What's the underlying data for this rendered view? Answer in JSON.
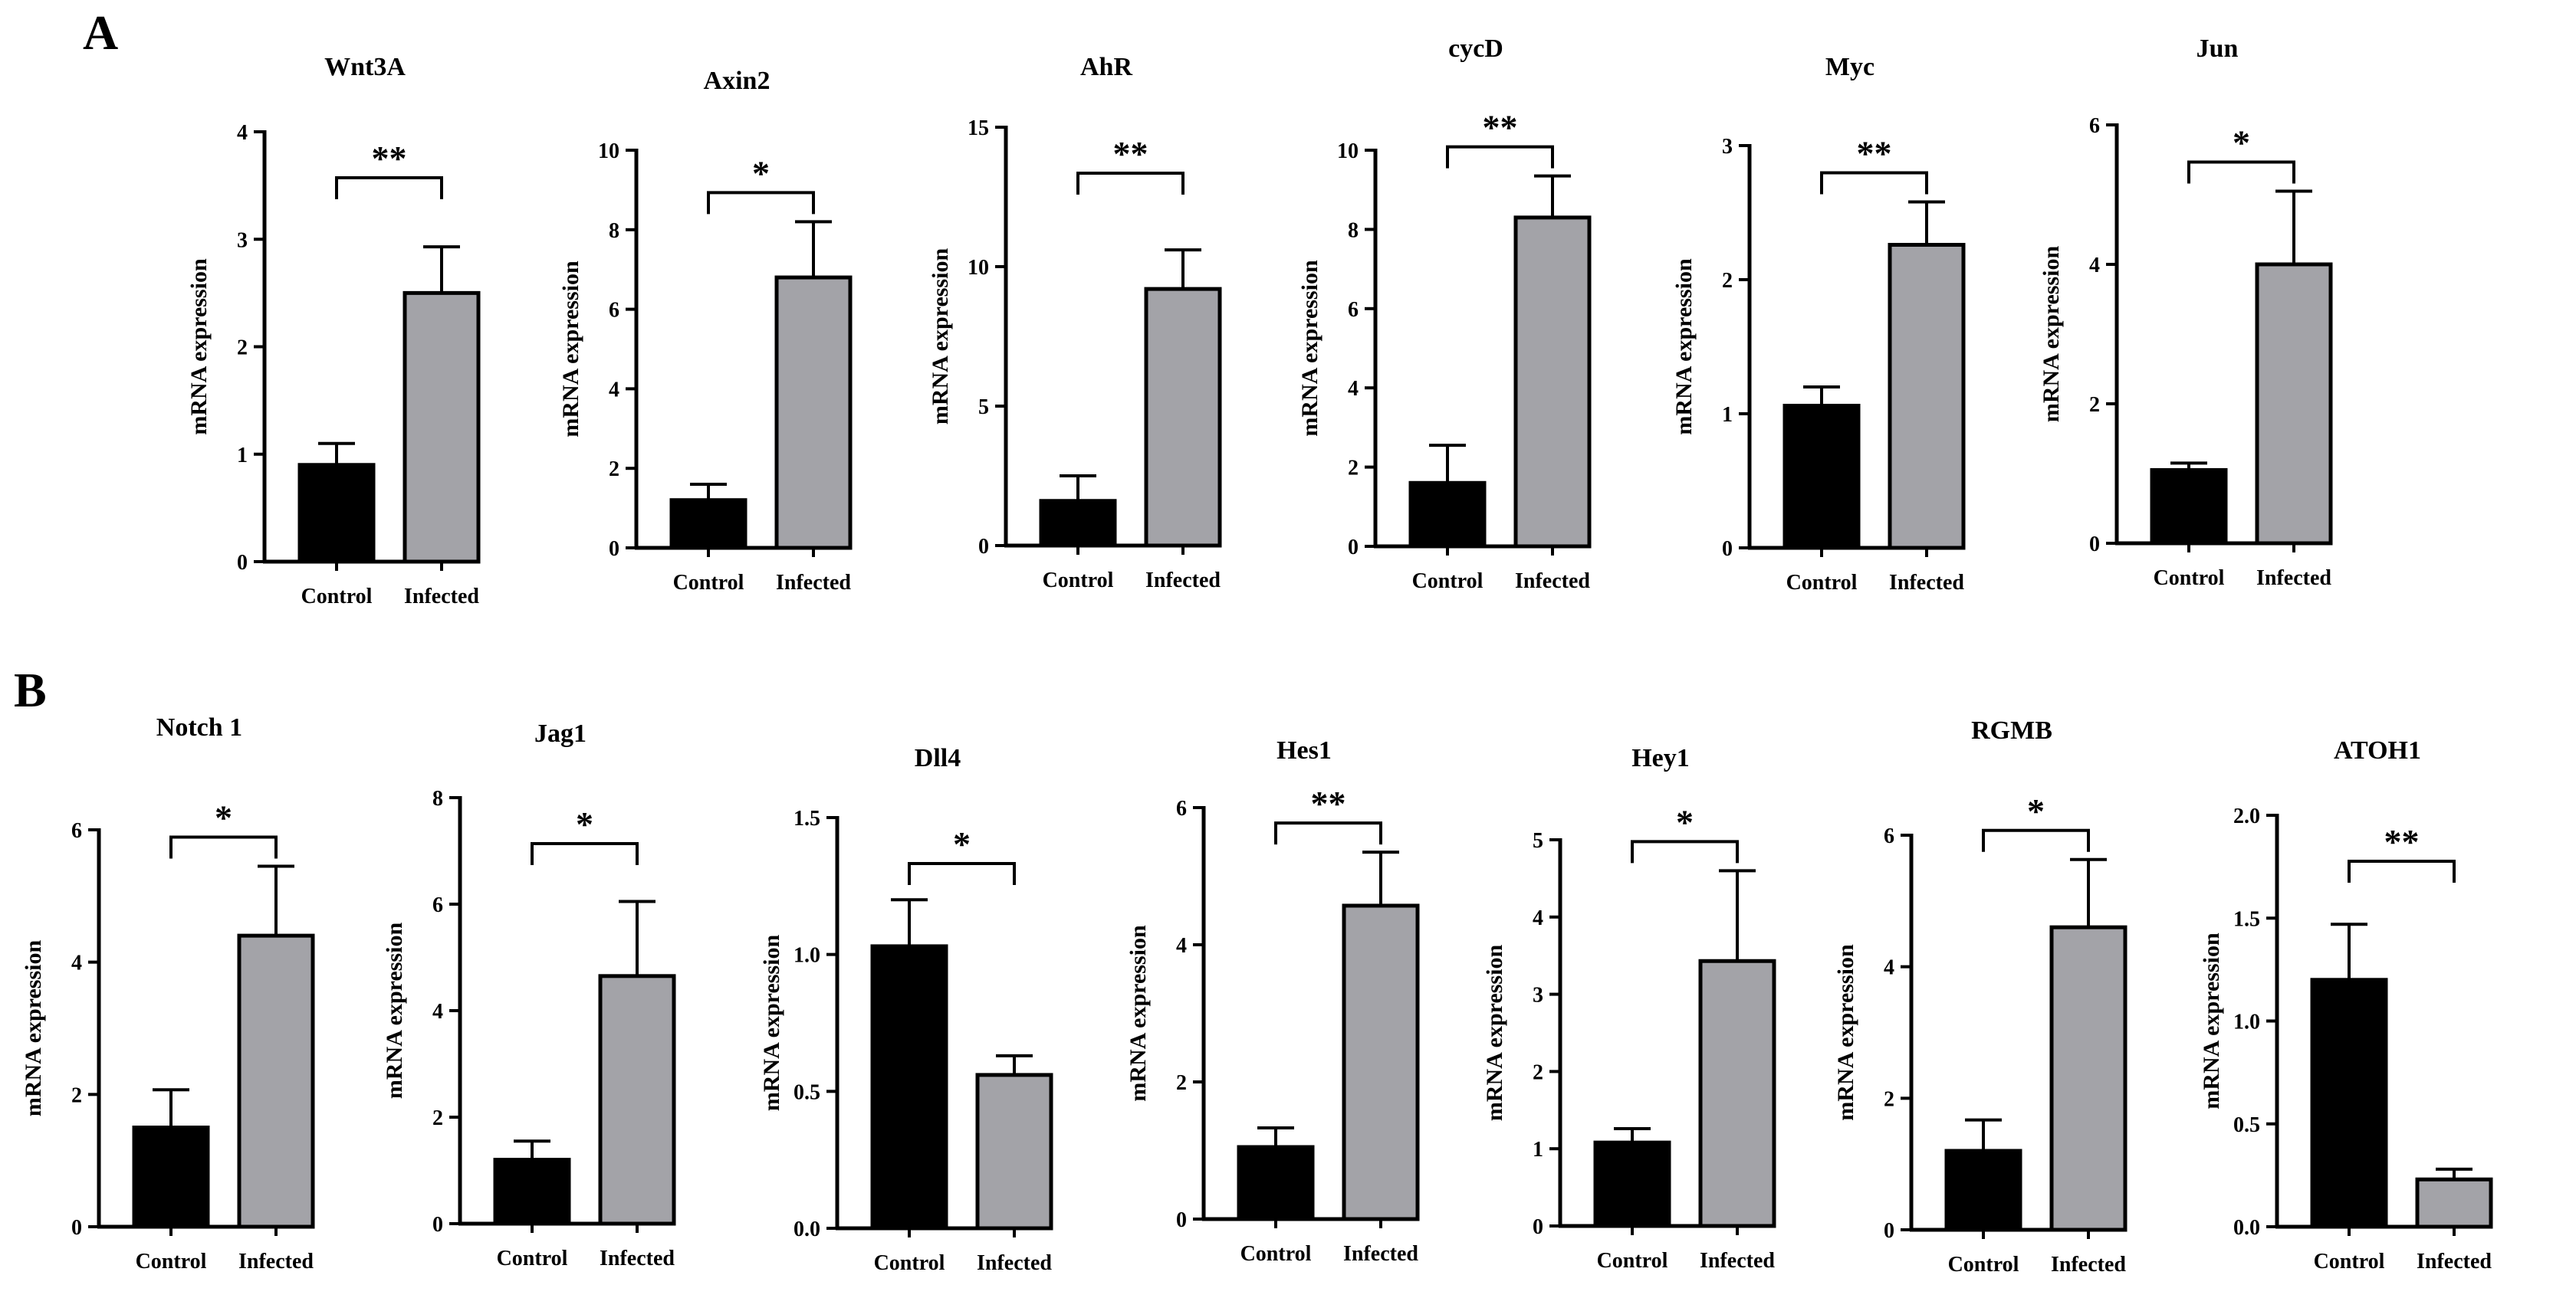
{
  "figure": {
    "panels": [
      "A",
      "B"
    ],
    "colors": {
      "control": "#000000",
      "infected": "#a3a3a8",
      "axis": "#000000"
    }
  },
  "chart_data": [
    {
      "type": "bar",
      "title": "Wnt3A",
      "categories": [
        "Control",
        "Infected"
      ],
      "values": [
        0.9,
        2.5
      ],
      "errors": [
        0.2,
        0.43
      ],
      "ylabel": "mRNA expression",
      "ylim": [
        0,
        4
      ],
      "yticks": [
        "0",
        "1",
        "2",
        "3",
        "4"
      ],
      "significance": "**",
      "panel": "A"
    },
    {
      "type": "bar",
      "title": "Axin2",
      "categories": [
        "Control",
        "Infected"
      ],
      "values": [
        1.2,
        6.8
      ],
      "errors": [
        0.4,
        1.4
      ],
      "ylabel": "mRNA expression",
      "ylim": [
        0,
        10
      ],
      "yticks": [
        "0",
        "2",
        "4",
        "6",
        "8",
        "10"
      ],
      "significance": "*",
      "panel": "A"
    },
    {
      "type": "bar",
      "title": "AhR",
      "categories": [
        "Control",
        "Infected"
      ],
      "values": [
        1.6,
        9.2
      ],
      "errors": [
        0.9,
        1.4
      ],
      "ylabel": "mRNA expression",
      "ylim": [
        0,
        15
      ],
      "yticks": [
        "0",
        "5",
        "10",
        "15"
      ],
      "significance": "**",
      "panel": "A"
    },
    {
      "type": "bar",
      "title": "cycD",
      "categories": [
        "Control",
        "Infected"
      ],
      "values": [
        1.6,
        8.3
      ],
      "errors": [
        0.95,
        1.05
      ],
      "ylabel": "mRNA expression",
      "ylim": [
        0,
        10
      ],
      "yticks": [
        "0",
        "2",
        "4",
        "6",
        "8",
        "10"
      ],
      "significance": "**",
      "panel": "A"
    },
    {
      "type": "bar",
      "title": "Myc",
      "categories": [
        "Control",
        "Infected"
      ],
      "values": [
        1.06,
        2.26
      ],
      "errors": [
        0.14,
        0.32
      ],
      "ylabel": "mRNA expression",
      "ylim": [
        0,
        3
      ],
      "yticks": [
        "0",
        "1",
        "2",
        "3"
      ],
      "significance": "**",
      "panel": "A"
    },
    {
      "type": "bar",
      "title": "Jun",
      "categories": [
        "Control",
        "Infected"
      ],
      "values": [
        1.05,
        4.0
      ],
      "errors": [
        0.1,
        1.05
      ],
      "ylabel": "mRNA expression",
      "ylim": [
        0,
        6
      ],
      "yticks": [
        "0",
        "2",
        "4",
        "6"
      ],
      "significance": "*",
      "panel": "A"
    },
    {
      "type": "bar",
      "title": "Notch 1",
      "categories": [
        "Control",
        "Infected"
      ],
      "values": [
        1.5,
        4.4
      ],
      "errors": [
        0.57,
        1.05
      ],
      "ylabel": "mRNA expression",
      "ylim": [
        0,
        6
      ],
      "yticks": [
        "0",
        "2",
        "4",
        "6"
      ],
      "significance": "*",
      "panel": "B"
    },
    {
      "type": "bar",
      "title": "Jag1",
      "categories": [
        "Control",
        "Infected"
      ],
      "values": [
        1.2,
        4.65
      ],
      "errors": [
        0.35,
        1.4
      ],
      "ylabel": "mRNA expression",
      "ylim": [
        0,
        8
      ],
      "yticks": [
        "0",
        "2",
        "4",
        "6",
        "8"
      ],
      "significance": "*",
      "panel": "B"
    },
    {
      "type": "bar",
      "title": "Dll4",
      "categories": [
        "Control",
        "Infected"
      ],
      "values": [
        1.03,
        0.56
      ],
      "errors": [
        0.17,
        0.07
      ],
      "ylabel": "mRNA expression",
      "ylim": [
        0,
        1.5
      ],
      "yticks": [
        "0.0",
        "0.5",
        "1.0",
        "1.5"
      ],
      "significance": "*",
      "panel": "B"
    },
    {
      "type": "bar",
      "title": "Hes1",
      "categories": [
        "Control",
        "Infected"
      ],
      "values": [
        1.05,
        4.57
      ],
      "errors": [
        0.28,
        0.78
      ],
      "ylabel": "mRNA expression",
      "ylim": [
        0,
        6
      ],
      "yticks": [
        "0",
        "2",
        "4",
        "6"
      ],
      "significance": "**",
      "panel": "B"
    },
    {
      "type": "bar",
      "title": "Hey1",
      "categories": [
        "Control",
        "Infected"
      ],
      "values": [
        1.08,
        3.43
      ],
      "errors": [
        0.18,
        1.17
      ],
      "ylabel": "mRNA expression",
      "ylim": [
        0,
        5
      ],
      "yticks": [
        "0",
        "1",
        "2",
        "3",
        "4",
        "5"
      ],
      "significance": "*",
      "panel": "B"
    },
    {
      "type": "bar",
      "title": "RGMB",
      "categories": [
        "Control",
        "Infected"
      ],
      "values": [
        1.2,
        4.6
      ],
      "errors": [
        0.47,
        1.03
      ],
      "ylabel": "mRNA expression",
      "ylim": [
        0,
        6
      ],
      "yticks": [
        "0",
        "2",
        "4",
        "6"
      ],
      "significance": "*",
      "panel": "B"
    },
    {
      "type": "bar",
      "title": "ATOH1",
      "categories": [
        "Control",
        "Infected"
      ],
      "values": [
        1.2,
        0.23
      ],
      "errors": [
        0.27,
        0.05
      ],
      "ylabel": "mRNA expression",
      "ylim": [
        0,
        2
      ],
      "yticks": [
        "0.0",
        "0.5",
        "1.0",
        "1.5",
        "2.0"
      ],
      "significance": "**",
      "panel": "B"
    }
  ]
}
